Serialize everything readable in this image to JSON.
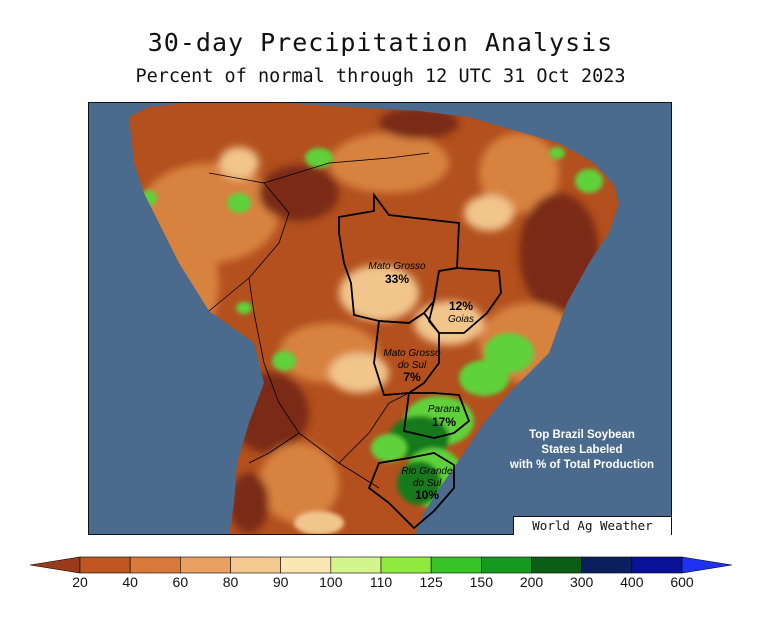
{
  "title": "30-day Precipitation Analysis",
  "subtitle": "Percent of normal through 12 UTC 31 Oct 2023",
  "credit": "World Ag Weather",
  "note": {
    "line1": "Top Brazil Soybean",
    "line2": "States Labeled",
    "line3": "with % of Total Production"
  },
  "states": [
    {
      "id": "mato-grosso",
      "name": "Mato Grosso",
      "pct": "33%"
    },
    {
      "id": "goias",
      "name": "Goias",
      "pct": "12%"
    },
    {
      "id": "mato-grosso-do-sul",
      "name_line1": "Mato Grosso",
      "name_line2": "do Sul",
      "pct": "7%"
    },
    {
      "id": "parana",
      "name": "Parana",
      "pct": "17%"
    },
    {
      "id": "rio-grande-do-sul",
      "name_line1": "Rio Grande",
      "name_line2": "do Sul",
      "pct": "10%"
    }
  ],
  "legend": {
    "ticks": [
      "20",
      "40",
      "60",
      "80",
      "90",
      "100",
      "110",
      "125",
      "150",
      "200",
      "300",
      "400",
      "600"
    ],
    "colors": [
      "#9b3a1a",
      "#c0561f",
      "#d8793a",
      "#e9a060",
      "#f3c98f",
      "#fbe7b4",
      "#d4f58b",
      "#8eea3e",
      "#36c427",
      "#159a1f",
      "#0a5e16",
      "#0b1f5e",
      "#0a1398",
      "#1e32f0"
    ]
  },
  "colors": {
    "ocean": "#4a6b8e",
    "dry_extreme": "#7a2a12",
    "dry": "#b3501e",
    "moderate": "#d8823f",
    "near_normal": "#f1c58c",
    "wet": "#5ed13a",
    "very_wet": "#137a1c"
  }
}
